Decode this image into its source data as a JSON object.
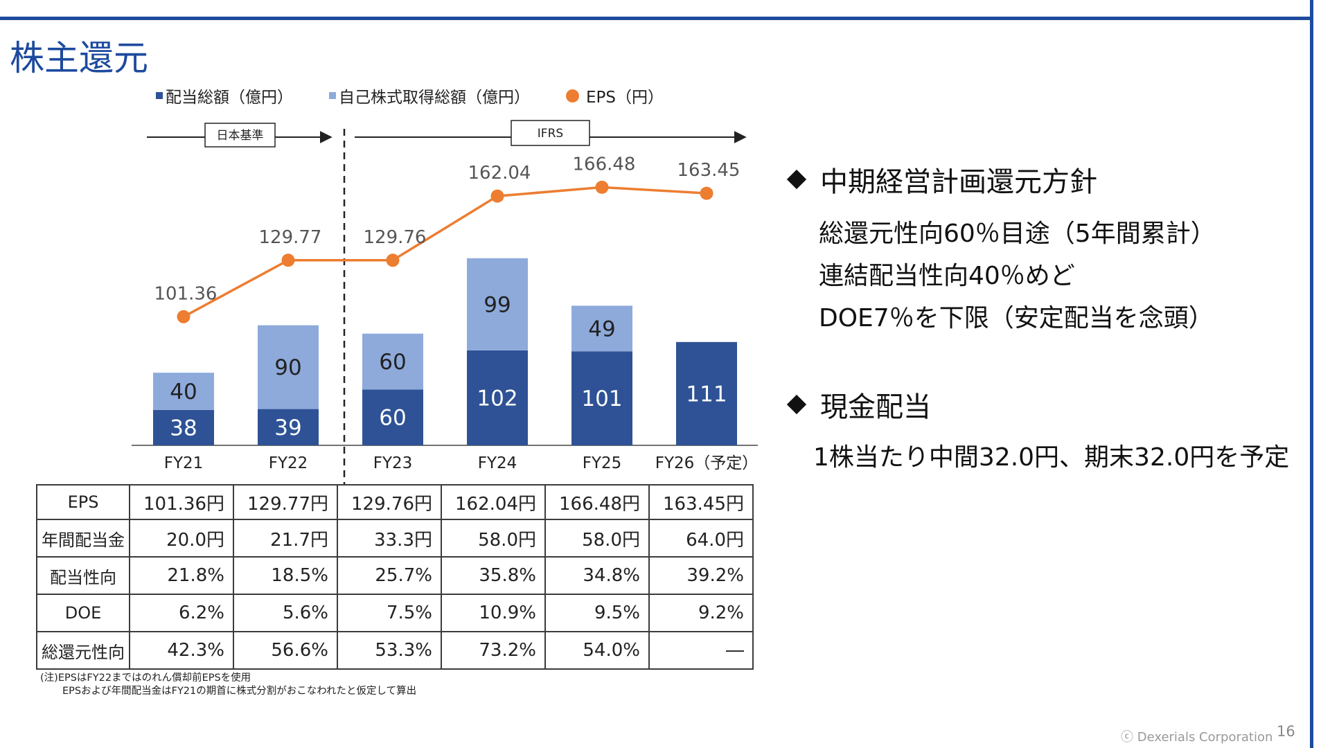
{
  "title": "株主還元",
  "legend": [
    {
      "label": "配当総額（億円）",
      "color": "#2e5295",
      "shape": "square"
    },
    {
      "label": "自己株式取得総額（億円）",
      "color": "#8eaadb",
      "shape": "square"
    },
    {
      "label": "EPS（円）",
      "color": "#ed7d31",
      "shape": "circle"
    }
  ],
  "basis": {
    "jgaap": "日本基準",
    "ifrs": "IFRS"
  },
  "chart_data": {
    "type": "bar",
    "stacked": true,
    "categories": [
      "FY21",
      "FY22",
      "FY23",
      "FY24",
      "FY25",
      "FY26（予定）"
    ],
    "series": [
      {
        "name": "配当総額（億円）",
        "type": "bar",
        "color": "#2e5295",
        "values": [
          38,
          39,
          60,
          102,
          101,
          111
        ]
      },
      {
        "name": "自己株式取得総額（億円）",
        "type": "bar",
        "color": "#8eaadb",
        "values": [
          40,
          90,
          60,
          99,
          49,
          null
        ]
      },
      {
        "name": "EPS（円）",
        "type": "line",
        "color": "#ed7d31",
        "values": [
          101.36,
          129.77,
          129.76,
          162.04,
          166.48,
          163.45
        ]
      }
    ],
    "eps_labels": [
      "101.36",
      "129.77",
      "129.76",
      "162.04",
      "166.48",
      "163.45"
    ],
    "bar_ylim": [
      0,
      250
    ],
    "eps_ylim": [
      60,
      180
    ],
    "accounting_basis_split_after": "FY22"
  },
  "table": {
    "rows": [
      {
        "label": "EPS",
        "values": [
          "101.36円",
          "129.77円",
          "129.76円",
          "162.04円",
          "166.48円",
          "163.45円"
        ]
      },
      {
        "label": "年間配当金",
        "values": [
          "20.0円",
          "21.7円",
          "33.3円",
          "58.0円",
          "58.0円",
          "64.0円"
        ]
      },
      {
        "label": "配当性向",
        "values": [
          "21.8%",
          "18.5%",
          "25.7%",
          "35.8%",
          "34.8%",
          "39.2%"
        ]
      },
      {
        "label": "DOE",
        "values": [
          "6.2%",
          "5.6%",
          "7.5%",
          "10.9%",
          "9.5%",
          "9.2%"
        ]
      },
      {
        "label": "総還元性向",
        "values": [
          "42.3%",
          "56.6%",
          "53.3%",
          "73.2%",
          "54.0%",
          "―"
        ]
      }
    ]
  },
  "notes": [
    "(注)EPSはFY22まではのれん償却前EPSを使用",
    "EPSおよび年間配当金はFY21の期首に株式分割がおこなわれたと仮定して算出"
  ],
  "policy": {
    "heading": "中期経営計画還元方針",
    "lines": [
      "総還元性向60％目途（5年間累計）",
      "連結配当性向40％めど",
      "DOE7％を下限（安定配当を念頭）"
    ]
  },
  "cash_dividend": {
    "heading": "現金配当",
    "lines": [
      "1株当たり中間32.0円、期末32.0円を予定"
    ]
  },
  "footer": {
    "copyright": "ⓒ Dexerials Corporation",
    "page": "16"
  }
}
